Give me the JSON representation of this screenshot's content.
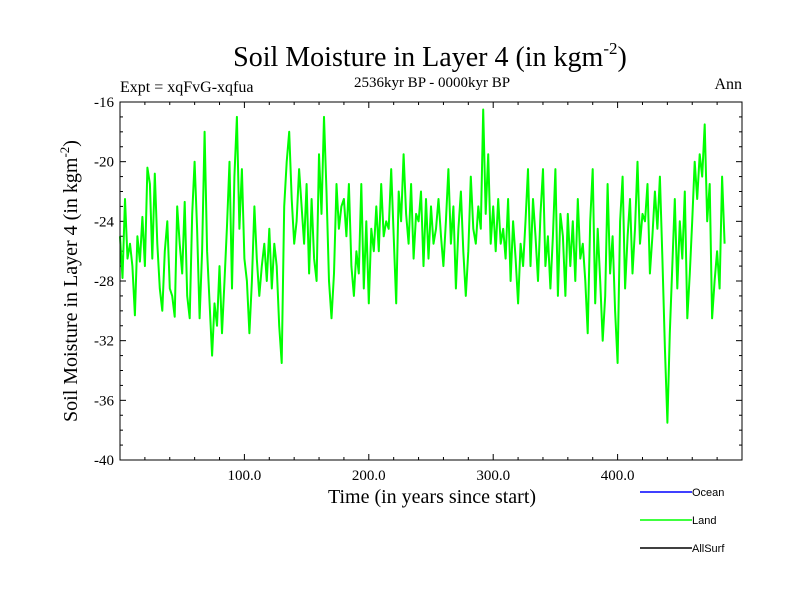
{
  "chart_data": {
    "type": "line",
    "title": "Soil Moisture in Layer 4 (in kgm",
    "title_sup": "-2",
    "title_close": ")",
    "subtitle": "2536kyr BP - 0000kyr BP",
    "left_label": "Expt = xqFvG-xqfua",
    "right_label": "Ann",
    "xlabel": "Time (in years since start)",
    "ylabel": "Soil Moisture in Layer 4 (in kgm",
    "ylabel_sup": "-2",
    "ylabel_close": ")",
    "xlim": [
      0,
      500
    ],
    "ylim": [
      -40,
      -16
    ],
    "x_ticks": [
      100,
      200,
      300,
      400
    ],
    "x_tick_labels": [
      "100.0",
      "200.0",
      "300.0",
      "400.0"
    ],
    "y_ticks": [
      -40,
      -36,
      -32,
      -28,
      -24,
      -20,
      -16
    ],
    "y_tick_labels": [
      "-40",
      "-36",
      "-32",
      "-28",
      "-24",
      "-20",
      "-16"
    ],
    "legend": [
      {
        "name": "Ocean",
        "color": "#0000ff"
      },
      {
        "name": "Land",
        "color": "#00ff00"
      },
      {
        "name": "AllSurf",
        "color": "#000000"
      }
    ],
    "series": [
      {
        "name": "Land",
        "color": "#00ff00",
        "x_start": 0,
        "x_step": 2,
        "values": [
          -25.0,
          -27.8,
          -22.5,
          -26.5,
          -25.5,
          -27.0,
          -30.3,
          -25.0,
          -26.7,
          -23.7,
          -27.0,
          -20.4,
          -21.5,
          -26.5,
          -20.8,
          -25.5,
          -28.5,
          -30.0,
          -26.0,
          -24.0,
          -28.5,
          -29.0,
          -30.4,
          -23.0,
          -25.5,
          -27.5,
          -22.7,
          -29.0,
          -30.5,
          -23.5,
          -20.0,
          -24.5,
          -30.5,
          -26.0,
          -18.0,
          -26.0,
          -29.5,
          -33.0,
          -29.5,
          -31.0,
          -27.0,
          -31.5,
          -28.0,
          -24.3,
          -20.0,
          -28.5,
          -21.0,
          -17.0,
          -24.5,
          -20.5,
          -26.5,
          -28.0,
          -31.5,
          -28.0,
          -23.0,
          -26.5,
          -29.0,
          -27.0,
          -25.5,
          -28.0,
          -24.5,
          -28.5,
          -25.5,
          -27.0,
          -31.0,
          -33.5,
          -23.0,
          -20.0,
          -18.0,
          -22.5,
          -25.5,
          -24.0,
          -20.5,
          -23.0,
          -25.5,
          -21.5,
          -27.5,
          -22.5,
          -26.5,
          -28.0,
          -19.5,
          -23.5,
          -17.0,
          -22.0,
          -28.0,
          -30.5,
          -27.5,
          -21.5,
          -24.5,
          -23.0,
          -22.5,
          -25.0,
          -21.5,
          -27.0,
          -29.0,
          -26.0,
          -27.5,
          -21.5,
          -28.5,
          -24.0,
          -29.5,
          -24.5,
          -26.0,
          -23.0,
          -26.0,
          -21.5,
          -25.0,
          -24.0,
          -24.5,
          -20.5,
          -25.0,
          -29.5,
          -22.0,
          -24.0,
          -19.5,
          -23.5,
          -25.5,
          -21.5,
          -26.5,
          -23.5,
          -24.0,
          -22.0,
          -27.0,
          -22.5,
          -26.5,
          -23.0,
          -25.5,
          -24.5,
          -22.5,
          -25.0,
          -27.0,
          -24.0,
          -20.5,
          -25.5,
          -23.0,
          -28.5,
          -24.5,
          -22.0,
          -26.0,
          -29.0,
          -26.0,
          -21.0,
          -24.5,
          -25.5,
          -23.0,
          -24.5,
          -16.5,
          -23.5,
          -19.5,
          -25.5,
          -23.0,
          -26.0,
          -22.5,
          -25.5,
          -24.5,
          -26.5,
          -22.5,
          -28.0,
          -24.0,
          -26.5,
          -29.5,
          -25.5,
          -27.0,
          -24.0,
          -20.5,
          -27.0,
          -22.5,
          -25.0,
          -28.0,
          -23.5,
          -20.5,
          -27.0,
          -25.0,
          -28.5,
          -25.0,
          -20.5,
          -29.0,
          -23.5,
          -25.0,
          -29.0,
          -23.5,
          -27.0,
          -24.0,
          -28.0,
          -22.5,
          -26.5,
          -25.5,
          -28.0,
          -31.5,
          -24.0,
          -20.5,
          -29.5,
          -24.5,
          -28.0,
          -32.0,
          -29.0,
          -21.5,
          -27.5,
          -25.0,
          -30.0,
          -33.5,
          -24.0,
          -21.0,
          -28.5,
          -25.0,
          -22.5,
          -27.5,
          -24.5,
          -20.0,
          -25.5,
          -23.5,
          -24.0,
          -21.5,
          -27.5,
          -25.0,
          -22.0,
          -24.5,
          -21.0,
          -26.5,
          -32.5,
          -37.5,
          -31.5,
          -27.0,
          -22.5,
          -28.5,
          -24.0,
          -26.5,
          -22.0,
          -30.5,
          -27.5,
          -24.0,
          -20.0,
          -22.5,
          -19.5,
          -21.0,
          -17.5,
          -24.0,
          -21.5,
          -30.5,
          -28.0,
          -26.0,
          -28.5,
          -21.0,
          -25.5
        ]
      }
    ]
  }
}
